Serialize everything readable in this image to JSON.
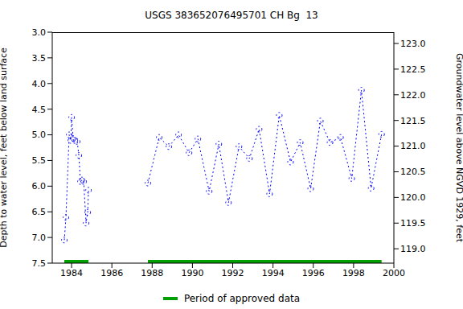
{
  "chart_data": {
    "type": "line",
    "title": "USGS 383652076495701 CH Bg  13",
    "ylabel": "Depth to water level, feet below land surface",
    "y2label": "Groundwater level above NGVD 1929, feet",
    "xlim": [
      1983.04,
      2000
    ],
    "xticks": [
      1984,
      1986,
      1988,
      1990,
      1992,
      1994,
      1996,
      1998,
      2000
    ],
    "ylim": [
      3.0,
      7.5
    ],
    "yticks": [
      {
        "value": 3.0,
        "label": "3.0"
      },
      {
        "value": 3.5,
        "label": "3.5"
      },
      {
        "value": 4.0,
        "label": "4.0"
      },
      {
        "value": 4.5,
        "label": "4.5"
      },
      {
        "value": 5.0,
        "label": "5.0"
      },
      {
        "value": 5.5,
        "label": "5.5"
      },
      {
        "value": 6.0,
        "label": "6.0"
      },
      {
        "value": 6.5,
        "label": "6.5"
      },
      {
        "value": 7.0,
        "label": "7.0"
      },
      {
        "value": 7.5,
        "label": "7.5"
      }
    ],
    "y2lim": [
      118.72,
      123.22
    ],
    "y2ticks": [
      {
        "value": 119.0,
        "label": "119.0"
      },
      {
        "value": 119.5,
        "label": "119.5"
      },
      {
        "value": 120.0,
        "label": "120.0"
      },
      {
        "value": 120.5,
        "label": "120.5"
      },
      {
        "value": 121.0,
        "label": "121.0"
      },
      {
        "value": 121.5,
        "label": "121.5"
      },
      {
        "value": 122.0,
        "label": "122.0"
      },
      {
        "value": 122.5,
        "label": "122.5"
      },
      {
        "value": 123.0,
        "label": "123.0"
      }
    ],
    "x": [
      1983.64,
      1983.72,
      1983.88,
      1983.96,
      1984.0,
      1984.08,
      1984.16,
      1984.28,
      1984.36,
      1984.44,
      1984.52,
      1984.6,
      1984.72,
      1984.8,
      1984.84,
      1986.3,
      1987.79,
      1988.35,
      1988.83,
      1989.31,
      1989.83,
      1990.27,
      1990.83,
      1991.31,
      1991.79,
      1992.31,
      1992.83,
      1993.31,
      1993.83,
      1994.31,
      1994.87,
      1995.35,
      1995.87,
      1996.35,
      1996.83,
      1997.35,
      1997.91,
      1998.39,
      1998.87,
      1999.39
    ],
    "series": [
      {
        "color": "#0000ff",
        "marker": "circle",
        "line_style": "dotted",
        "values": [
          7.05,
          6.61,
          5.0,
          5.11,
          4.66,
          5.07,
          5.11,
          5.13,
          5.4,
          5.91,
          5.88,
          5.91,
          6.72,
          6.51,
          6.08,
          null,
          5.94,
          5.05,
          5.23,
          5.0,
          5.35,
          5.08,
          6.1,
          5.18,
          6.32,
          5.23,
          5.46,
          4.89,
          6.15,
          4.62,
          5.53,
          5.15,
          6.05,
          4.73,
          5.15,
          5.05,
          5.85,
          4.13,
          6.04,
          4.99
        ]
      }
    ],
    "approved_periods": {
      "name": "Period of approved data",
      "color": "#00a000",
      "level": 7.47,
      "ranges": [
        [
          1983.64,
          1984.84
        ],
        [
          1987.79,
          1999.39
        ]
      ]
    }
  }
}
